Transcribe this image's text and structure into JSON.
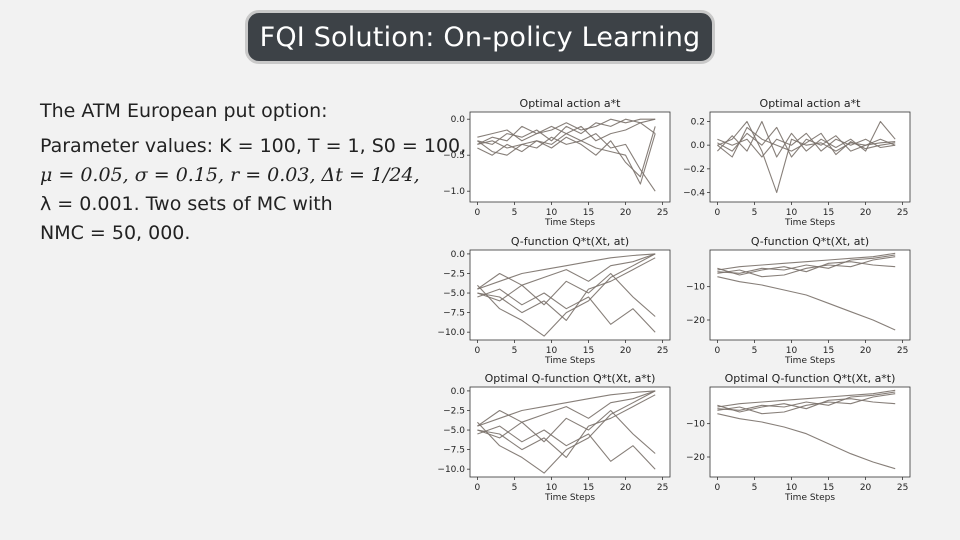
{
  "slide": {
    "title": "FQI Solution: On-policy Learning",
    "heading": "The ATM European put option:",
    "params_line1": "Parameter values: K = 100, T = 1, S0 = 100,",
    "params_line2": "μ = 0.05, σ = 0.15, r = 0.03, Δt = 1/24,",
    "params_line3": "λ = 0.001.  Two sets of MC with",
    "params_line4": "NMC = 50, 000."
  },
  "colors": {
    "line": "#7a716a",
    "axis": "#333333",
    "pill_bg": "#3d4247"
  },
  "chart_data": [
    {
      "type": "line",
      "title": "Optimal action a*t",
      "xlabel": "Time Steps",
      "ylabel": "",
      "xlim": [
        -1,
        26
      ],
      "ylim": [
        -1.15,
        0.1
      ],
      "xticks": [
        0,
        5,
        10,
        15,
        20,
        25
      ],
      "yticks": [
        0.0,
        -0.5,
        -1.0
      ],
      "ytick_labels": [
        "0.0",
        "−0.5",
        "−1.0"
      ],
      "series": [
        {
          "x": [
            0,
            2,
            4,
            6,
            8,
            10,
            12,
            14,
            16,
            18,
            20,
            22,
            24
          ],
          "y": [
            -0.3,
            -0.35,
            -0.2,
            -0.25,
            -0.15,
            -0.3,
            -0.1,
            -0.2,
            -0.05,
            -0.1,
            0.0,
            -0.05,
            -0.2
          ]
        },
        {
          "x": [
            0,
            2,
            4,
            6,
            8,
            10,
            12,
            14,
            16,
            18,
            20,
            22,
            24
          ],
          "y": [
            -0.35,
            -0.25,
            -0.3,
            -0.1,
            -0.2,
            -0.15,
            -0.05,
            -0.15,
            -0.1,
            0.0,
            -0.05,
            0.0,
            0.0
          ]
        },
        {
          "x": [
            0,
            2,
            4,
            6,
            8,
            10,
            12,
            14,
            16,
            18,
            20,
            22,
            24
          ],
          "y": [
            -0.4,
            -0.5,
            -0.35,
            -0.45,
            -0.3,
            -0.4,
            -0.25,
            -0.35,
            -0.5,
            -0.3,
            -0.6,
            -0.8,
            -0.1
          ]
        },
        {
          "x": [
            0,
            2,
            4,
            6,
            8,
            10,
            12,
            14,
            16,
            18,
            20,
            22,
            24
          ],
          "y": [
            -0.3,
            -0.45,
            -0.5,
            -0.35,
            -0.4,
            -0.25,
            -0.35,
            -0.3,
            -0.2,
            -0.4,
            -0.35,
            -0.7,
            -1.0
          ]
        },
        {
          "x": [
            0,
            2,
            4,
            6,
            8,
            10,
            12,
            14,
            16,
            18,
            20,
            22,
            24
          ],
          "y": [
            -0.35,
            -0.3,
            -0.4,
            -0.35,
            -0.3,
            -0.35,
            -0.2,
            -0.1,
            -0.3,
            -0.2,
            -0.15,
            -0.05,
            0.0
          ]
        },
        {
          "x": [
            0,
            2,
            4,
            6,
            8,
            10,
            12,
            14,
            16,
            18,
            20,
            22,
            24
          ],
          "y": [
            -0.25,
            -0.2,
            -0.15,
            -0.3,
            -0.2,
            -0.1,
            -0.2,
            -0.3,
            -0.4,
            -0.45,
            -0.5,
            -0.9,
            -0.2
          ]
        }
      ]
    },
    {
      "type": "line",
      "title": "Optimal action a*t",
      "xlabel": "Time Steps",
      "ylabel": "",
      "xlim": [
        -1,
        26
      ],
      "ylim": [
        -0.48,
        0.28
      ],
      "xticks": [
        0,
        5,
        10,
        15,
        20,
        25
      ],
      "yticks": [
        0.2,
        0.0,
        -0.2,
        -0.4
      ],
      "ytick_labels": [
        "0.2",
        "0.0",
        "−0.2",
        "−0.4"
      ],
      "series": [
        {
          "x": [
            0,
            2,
            4,
            6,
            8,
            10,
            12,
            14,
            16,
            18,
            20,
            22,
            24
          ],
          "y": [
            0.0,
            0.05,
            0.2,
            -0.05,
            -0.4,
            0.05,
            0.0,
            0.02,
            -0.05,
            0.02,
            0.0,
            0.05,
            0.0
          ]
        },
        {
          "x": [
            0,
            2,
            4,
            6,
            8,
            10,
            12,
            14,
            16,
            18,
            20,
            22,
            24
          ],
          "y": [
            0.02,
            -0.05,
            0.1,
            0.0,
            0.15,
            -0.1,
            0.05,
            0.0,
            0.08,
            -0.05,
            0.0,
            0.02,
            0.03
          ]
        },
        {
          "x": [
            0,
            2,
            4,
            6,
            8,
            10,
            12,
            14,
            16,
            18,
            20,
            22,
            24
          ],
          "y": [
            -0.05,
            0.08,
            -0.05,
            0.2,
            -0.1,
            0.1,
            -0.05,
            0.05,
            -0.02,
            0.05,
            -0.05,
            0.2,
            0.05
          ]
        },
        {
          "x": [
            0,
            2,
            4,
            6,
            8,
            10,
            12,
            14,
            16,
            18,
            20,
            22,
            24
          ],
          "y": [
            0.05,
            0.0,
            0.05,
            -0.1,
            0.05,
            0.0,
            0.1,
            -0.05,
            0.05,
            0.0,
            0.05,
            -0.02,
            0.0
          ]
        },
        {
          "x": [
            0,
            2,
            4,
            6,
            8,
            10,
            12,
            14,
            16,
            18,
            20,
            22,
            24
          ],
          "y": [
            0.0,
            -0.1,
            0.15,
            0.05,
            0.0,
            -0.05,
            0.02,
            0.1,
            -0.08,
            0.03,
            -0.03,
            0.0,
            0.02
          ]
        }
      ]
    },
    {
      "type": "line",
      "title": "Q-function Q*t(Xt, at)",
      "xlabel": "Time Steps",
      "ylabel": "",
      "xlim": [
        -1,
        26
      ],
      "ylim": [
        -11,
        0.5
      ],
      "xticks": [
        0,
        5,
        10,
        15,
        20,
        25
      ],
      "yticks": [
        0.0,
        -2.5,
        -5.0,
        -7.5,
        -10.0
      ],
      "ytick_labels": [
        "0.0",
        "−2.5",
        "−5.0",
        "−7.5",
        "−10.0"
      ],
      "series": [
        {
          "x": [
            0,
            3,
            6,
            9,
            12,
            15,
            18,
            21,
            24
          ],
          "y": [
            -4.5,
            -3.5,
            -2.5,
            -2.0,
            -1.5,
            -1.0,
            -0.5,
            -0.2,
            0.0
          ]
        },
        {
          "x": [
            0,
            3,
            6,
            9,
            12,
            15,
            18,
            21,
            24
          ],
          "y": [
            -5.0,
            -6.0,
            -4.0,
            -6.5,
            -3.5,
            -5.0,
            -2.5,
            -5.5,
            -8.0
          ]
        },
        {
          "x": [
            0,
            3,
            6,
            9,
            12,
            15,
            18,
            21,
            24
          ],
          "y": [
            -4.0,
            -7.0,
            -8.5,
            -10.5,
            -7.5,
            -6.0,
            -3.0,
            -1.5,
            0.0
          ]
        },
        {
          "x": [
            0,
            3,
            6,
            9,
            12,
            15,
            18,
            21,
            24
          ],
          "y": [
            -5.5,
            -4.5,
            -6.5,
            -5.0,
            -7.0,
            -5.5,
            -9.0,
            -7.0,
            -10.0
          ]
        },
        {
          "x": [
            0,
            3,
            6,
            9,
            12,
            15,
            18,
            21,
            24
          ],
          "y": [
            -4.5,
            -2.5,
            -4.0,
            -3.0,
            -2.0,
            -3.5,
            -1.5,
            -1.0,
            0.0
          ]
        },
        {
          "x": [
            0,
            3,
            6,
            9,
            12,
            15,
            18,
            21,
            24
          ],
          "y": [
            -5.0,
            -5.5,
            -7.5,
            -6.0,
            -8.5,
            -4.5,
            -3.5,
            -2.0,
            -0.5
          ]
        }
      ]
    },
    {
      "type": "line",
      "title": "Q-function Q*t(Xt, at)",
      "xlabel": "Time Steps",
      "ylabel": "",
      "xlim": [
        -1,
        26
      ],
      "ylim": [
        -26,
        1
      ],
      "xticks": [
        0,
        5,
        10,
        15,
        20,
        25
      ],
      "yticks": [
        -10,
        -20
      ],
      "ytick_labels": [
        "−10",
        "−20"
      ],
      "series": [
        {
          "x": [
            0,
            3,
            6,
            9,
            12,
            15,
            18,
            21,
            24
          ],
          "y": [
            -5.0,
            -4.0,
            -3.5,
            -3.0,
            -2.5,
            -2.0,
            -1.5,
            -1.0,
            0.0
          ]
        },
        {
          "x": [
            0,
            3,
            6,
            9,
            12,
            15,
            18,
            21,
            24
          ],
          "y": [
            -7.0,
            -8.5,
            -9.5,
            -11.0,
            -12.5,
            -15.0,
            -17.5,
            -20.0,
            -23.0
          ]
        },
        {
          "x": [
            0,
            3,
            6,
            9,
            12,
            15,
            18,
            21,
            24
          ],
          "y": [
            -6.0,
            -5.0,
            -7.0,
            -6.5,
            -4.5,
            -3.5,
            -4.0,
            -2.0,
            -1.0
          ]
        },
        {
          "x": [
            0,
            3,
            6,
            9,
            12,
            15,
            18,
            21,
            24
          ],
          "y": [
            -4.5,
            -6.5,
            -5.0,
            -4.0,
            -5.5,
            -3.0,
            -2.5,
            -3.5,
            -4.0
          ]
        },
        {
          "x": [
            0,
            3,
            6,
            9,
            12,
            15,
            18,
            21,
            24
          ],
          "y": [
            -5.5,
            -6.0,
            -4.5,
            -5.0,
            -3.5,
            -4.5,
            -2.0,
            -1.5,
            -0.5
          ]
        }
      ]
    },
    {
      "type": "line",
      "title": "Optimal Q-function Q*t(Xt, a*t)",
      "xlabel": "Time Steps",
      "ylabel": "",
      "xlim": [
        -1,
        26
      ],
      "ylim": [
        -11,
        0.5
      ],
      "xticks": [
        0,
        5,
        10,
        15,
        20,
        25
      ],
      "yticks": [
        0.0,
        -2.5,
        -5.0,
        -7.5,
        -10.0
      ],
      "ytick_labels": [
        "0.0",
        "−2.5",
        "−5.0",
        "−7.5",
        "−10.0"
      ],
      "series": [
        {
          "x": [
            0,
            3,
            6,
            9,
            12,
            15,
            18,
            21,
            24
          ],
          "y": [
            -4.5,
            -3.5,
            -2.5,
            -2.0,
            -1.5,
            -1.0,
            -0.5,
            -0.2,
            0.0
          ]
        },
        {
          "x": [
            0,
            3,
            6,
            9,
            12,
            15,
            18,
            21,
            24
          ],
          "y": [
            -5.0,
            -6.0,
            -4.0,
            -6.5,
            -3.5,
            -5.0,
            -2.5,
            -5.5,
            -8.0
          ]
        },
        {
          "x": [
            0,
            3,
            6,
            9,
            12,
            15,
            18,
            21,
            24
          ],
          "y": [
            -4.0,
            -7.0,
            -8.5,
            -10.5,
            -7.5,
            -6.0,
            -3.0,
            -1.5,
            0.0
          ]
        },
        {
          "x": [
            0,
            3,
            6,
            9,
            12,
            15,
            18,
            21,
            24
          ],
          "y": [
            -5.5,
            -4.5,
            -6.5,
            -5.0,
            -7.0,
            -5.5,
            -9.0,
            -7.0,
            -10.0
          ]
        },
        {
          "x": [
            0,
            3,
            6,
            9,
            12,
            15,
            18,
            21,
            24
          ],
          "y": [
            -4.5,
            -2.5,
            -4.0,
            -3.0,
            -2.0,
            -3.5,
            -1.5,
            -1.0,
            0.0
          ]
        },
        {
          "x": [
            0,
            3,
            6,
            9,
            12,
            15,
            18,
            21,
            24
          ],
          "y": [
            -5.0,
            -5.5,
            -7.5,
            -6.0,
            -8.5,
            -4.5,
            -3.5,
            -2.0,
            -0.5
          ]
        }
      ]
    },
    {
      "type": "line",
      "title": "Optimal Q-function Q*t(Xt, a*t)",
      "xlabel": "Time Steps",
      "ylabel": "",
      "xlim": [
        -1,
        26
      ],
      "ylim": [
        -26,
        1
      ],
      "xticks": [
        0,
        5,
        10,
        15,
        20,
        25
      ],
      "yticks": [
        -10,
        -20
      ],
      "ytick_labels": [
        "−10",
        "−20"
      ],
      "series": [
        {
          "x": [
            0,
            3,
            6,
            9,
            12,
            15,
            18,
            21,
            24
          ],
          "y": [
            -5.0,
            -4.0,
            -3.5,
            -3.0,
            -2.5,
            -2.0,
            -1.5,
            -1.0,
            0.0
          ]
        },
        {
          "x": [
            0,
            3,
            6,
            9,
            12,
            15,
            18,
            21,
            24
          ],
          "y": [
            -7.0,
            -8.5,
            -9.5,
            -11.0,
            -13.0,
            -16.0,
            -19.0,
            -21.5,
            -23.5
          ]
        },
        {
          "x": [
            0,
            3,
            6,
            9,
            12,
            15,
            18,
            21,
            24
          ],
          "y": [
            -6.0,
            -5.0,
            -7.0,
            -6.5,
            -4.5,
            -3.5,
            -4.0,
            -2.0,
            -1.0
          ]
        },
        {
          "x": [
            0,
            3,
            6,
            9,
            12,
            15,
            18,
            21,
            24
          ],
          "y": [
            -4.5,
            -6.5,
            -5.0,
            -4.0,
            -5.5,
            -3.0,
            -2.5,
            -3.5,
            -4.0
          ]
        },
        {
          "x": [
            0,
            3,
            6,
            9,
            12,
            15,
            18,
            21,
            24
          ],
          "y": [
            -5.5,
            -6.0,
            -4.5,
            -5.0,
            -3.5,
            -4.5,
            -2.0,
            -1.5,
            -0.5
          ]
        }
      ]
    }
  ]
}
